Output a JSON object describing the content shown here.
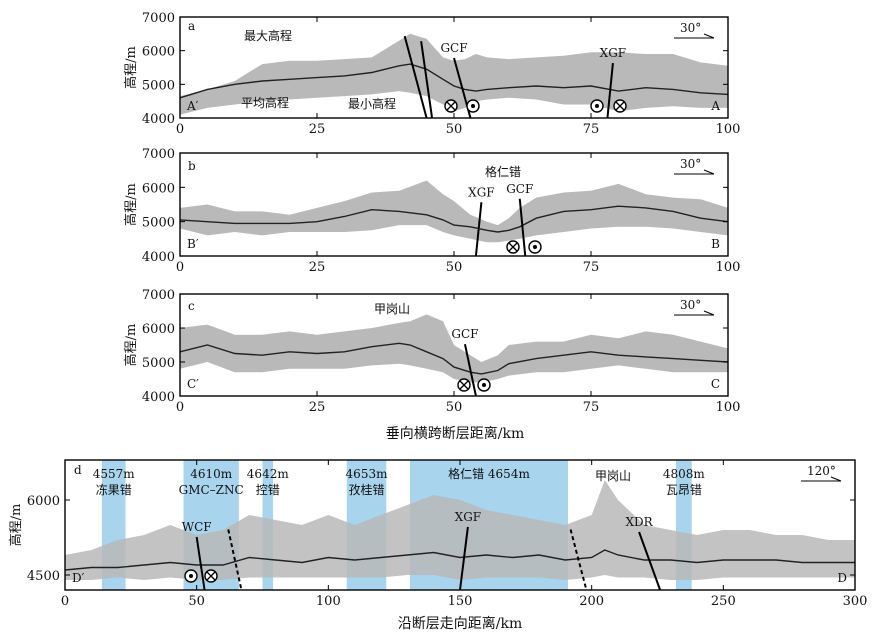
{
  "chart_data": [
    {
      "type": "area",
      "panel": "a",
      "ylabel": "高程/m",
      "xlim": [
        0,
        100
      ],
      "ylim": [
        4000,
        7000
      ],
      "xticks": [
        0,
        25,
        50,
        75,
        100
      ],
      "yticks": [
        4000,
        5000,
        6000,
        7000
      ],
      "start_label": "A′",
      "end_label": "A",
      "orientation": "30°",
      "x": [
        0,
        5,
        10,
        15,
        20,
        25,
        30,
        35,
        40,
        42,
        45,
        48,
        50,
        52,
        54,
        56,
        60,
        65,
        70,
        75,
        80,
        85,
        90,
        95,
        100
      ],
      "max": [
        4650,
        4850,
        5100,
        5600,
        5700,
        5700,
        5750,
        5800,
        6300,
        6500,
        6350,
        5800,
        5700,
        5750,
        5900,
        5800,
        5750,
        5800,
        5850,
        5950,
        5950,
        5900,
        5900,
        5650,
        5550
      ],
      "min": [
        4100,
        4300,
        4400,
        4500,
        4550,
        4600,
        4650,
        4700,
        4800,
        4750,
        4650,
        4400,
        4200,
        4300,
        4500,
        4550,
        4600,
        4550,
        4400,
        4400,
        4200,
        4300,
        4350,
        4300,
        4300
      ],
      "mean": [
        4600,
        4850,
        5000,
        5100,
        5150,
        5200,
        5250,
        5350,
        5550,
        5600,
        5450,
        5150,
        4950,
        4850,
        4800,
        4850,
        4900,
        4950,
        4900,
        4950,
        4800,
        4900,
        4850,
        4750,
        4700
      ],
      "faults": [
        {
          "label": "",
          "x": 41,
          "x2": 45,
          "arrow": false
        },
        {
          "label": "",
          "x": 44,
          "x2": 46,
          "arrow": false
        },
        {
          "label": "GCF",
          "x": 50,
          "x2": 53,
          "arrow": true
        },
        {
          "label": "XGF",
          "x": 79,
          "x2": 78,
          "arrow": true
        }
      ],
      "annotations": [
        "最大高程",
        "平均高程",
        "最小高程"
      ]
    },
    {
      "type": "area",
      "panel": "b",
      "ylabel": "高程/m",
      "xlim": [
        0,
        100
      ],
      "ylim": [
        4000,
        7000
      ],
      "xticks": [
        0,
        25,
        50,
        75,
        100
      ],
      "yticks": [
        4000,
        5000,
        6000,
        7000
      ],
      "start_label": "B′",
      "end_label": "B",
      "orientation": "30°",
      "x": [
        0,
        5,
        10,
        15,
        20,
        25,
        30,
        35,
        40,
        45,
        48,
        50,
        53,
        56,
        58,
        60,
        62,
        65,
        70,
        75,
        80,
        85,
        90,
        95,
        100
      ],
      "max": [
        5400,
        5500,
        5300,
        5300,
        5200,
        5400,
        5600,
        5850,
        5900,
        6200,
        5800,
        5600,
        5200,
        5000,
        4900,
        5100,
        5400,
        5700,
        5850,
        5900,
        6100,
        5800,
        5700,
        5650,
        5400
      ],
      "min": [
        4800,
        4600,
        4700,
        4600,
        4700,
        4700,
        4700,
        4750,
        4900,
        4900,
        4700,
        4600,
        4500,
        4400,
        4400,
        4450,
        4500,
        4600,
        4700,
        4800,
        4850,
        4850,
        4800,
        4700,
        4600
      ],
      "mean": [
        5050,
        5000,
        4950,
        4950,
        4950,
        5000,
        5150,
        5350,
        5300,
        5200,
        5050,
        4900,
        4850,
        4750,
        4700,
        4750,
        4850,
        5100,
        5300,
        5350,
        5450,
        5400,
        5300,
        5100,
        5000
      ],
      "faults": [
        {
          "label": "XGF",
          "x": 55,
          "x2": 54,
          "arrow": true
        },
        {
          "label": "GCF",
          "x": 62,
          "x2": 63,
          "arrow": true
        }
      ],
      "annotations": [
        "格仁错"
      ]
    },
    {
      "type": "area",
      "panel": "c",
      "ylabel": "高程/m",
      "xlim": [
        0,
        100
      ],
      "ylim": [
        4000,
        7000
      ],
      "xticks": [
        0,
        25,
        50,
        75,
        100
      ],
      "yticks": [
        4000,
        5000,
        6000,
        7000
      ],
      "start_label": "C′",
      "end_label": "C",
      "orientation": "30°",
      "x": [
        0,
        5,
        10,
        15,
        20,
        25,
        30,
        35,
        40,
        42,
        45,
        48,
        50,
        53,
        55,
        58,
        60,
        65,
        70,
        75,
        80,
        85,
        90,
        95,
        100
      ],
      "max": [
        6000,
        6100,
        5800,
        5800,
        5900,
        5800,
        5900,
        6000,
        6150,
        6200,
        6400,
        6200,
        5500,
        5200,
        5000,
        5200,
        5500,
        5600,
        5600,
        5800,
        5700,
        5900,
        5800,
        5600,
        5400
      ],
      "min": [
        4800,
        5000,
        4700,
        4700,
        4800,
        4800,
        4800,
        4900,
        4950,
        4900,
        4800,
        4700,
        4500,
        4400,
        4400,
        4500,
        4600,
        4700,
        4700,
        4800,
        4900,
        4800,
        4700,
        4700,
        4700
      ],
      "mean": [
        5300,
        5500,
        5250,
        5200,
        5300,
        5250,
        5300,
        5450,
        5550,
        5500,
        5300,
        5100,
        4850,
        4700,
        4650,
        4750,
        4950,
        5100,
        5200,
        5300,
        5200,
        5150,
        5100,
        5050,
        5000
      ],
      "faults": [
        {
          "label": "GCF",
          "x": 52,
          "x2": 54,
          "arrow": true
        }
      ],
      "annotations": [
        "甲岗山"
      ]
    },
    {
      "type": "area",
      "panel": "d",
      "ylabel": "高程/m",
      "xlabel": "沿断层走向距离/km",
      "xlim": [
        0,
        300
      ],
      "ylim": [
        4200,
        6800
      ],
      "xticks": [
        0,
        50,
        100,
        150,
        200,
        250,
        300
      ],
      "yticks": [
        4500,
        6000
      ],
      "start_label": "D′",
      "end_label": "D",
      "orientation": "120°",
      "x": [
        0,
        10,
        20,
        30,
        40,
        50,
        60,
        70,
        80,
        90,
        100,
        110,
        120,
        130,
        140,
        150,
        160,
        170,
        180,
        190,
        200,
        205,
        210,
        220,
        230,
        240,
        250,
        260,
        270,
        280,
        290,
        300
      ],
      "max": [
        4900,
        5000,
        5200,
        5300,
        5500,
        5300,
        5400,
        5700,
        5600,
        5500,
        5700,
        5500,
        5700,
        5900,
        6100,
        6000,
        5800,
        5700,
        5600,
        5500,
        5700,
        6400,
        6000,
        5500,
        5400,
        5300,
        5400,
        5400,
        5300,
        5300,
        5200,
        5200
      ],
      "min": [
        4400,
        4400,
        4450,
        4400,
        4450,
        4400,
        4400,
        4450,
        4450,
        4450,
        4450,
        4450,
        4450,
        4500,
        4500,
        4400,
        4450,
        4450,
        4450,
        4400,
        4450,
        4500,
        4450,
        4450,
        4400,
        4400,
        4450,
        4450,
        4450,
        4450,
        4450,
        4450
      ],
      "mean": [
        4600,
        4650,
        4650,
        4700,
        4750,
        4700,
        4700,
        4850,
        4800,
        4750,
        4850,
        4800,
        4850,
        4900,
        4950,
        4850,
        4900,
        4850,
        4900,
        4800,
        4850,
        5000,
        4900,
        4800,
        4800,
        4750,
        4800,
        4800,
        4800,
        4750,
        4750,
        4750
      ],
      "highlights": [
        {
          "label": "4557m",
          "name": "冻果错",
          "x0": 14,
          "x1": 23
        },
        {
          "label": "4610m",
          "name": "GMC–ZNC",
          "x0": 45,
          "x1": 66
        },
        {
          "label": "4642m",
          "name": "控错",
          "x0": 75,
          "x1": 79
        },
        {
          "label": "4653m",
          "name": "孜桂错",
          "x0": 107,
          "x1": 122
        },
        {
          "label": "格仁错 4654m",
          "name": "",
          "x0": 131,
          "x1": 191
        },
        {
          "label": "4808m",
          "name": "瓦昂错",
          "x0": 232,
          "x1": 238
        }
      ],
      "faults": [
        {
          "label": "WCF",
          "x": 50,
          "x2": 53
        },
        {
          "label": "",
          "x": 62,
          "x2": 67
        },
        {
          "label": "XGF",
          "x": 153,
          "x2": 150
        },
        {
          "label": "",
          "x": 192,
          "x2": 198
        },
        {
          "label": "XDR",
          "x": 218,
          "x2": 226
        }
      ],
      "annotations": [
        "甲岗山"
      ]
    }
  ],
  "shared_xlabel": "垂向横跨断层距离/km"
}
